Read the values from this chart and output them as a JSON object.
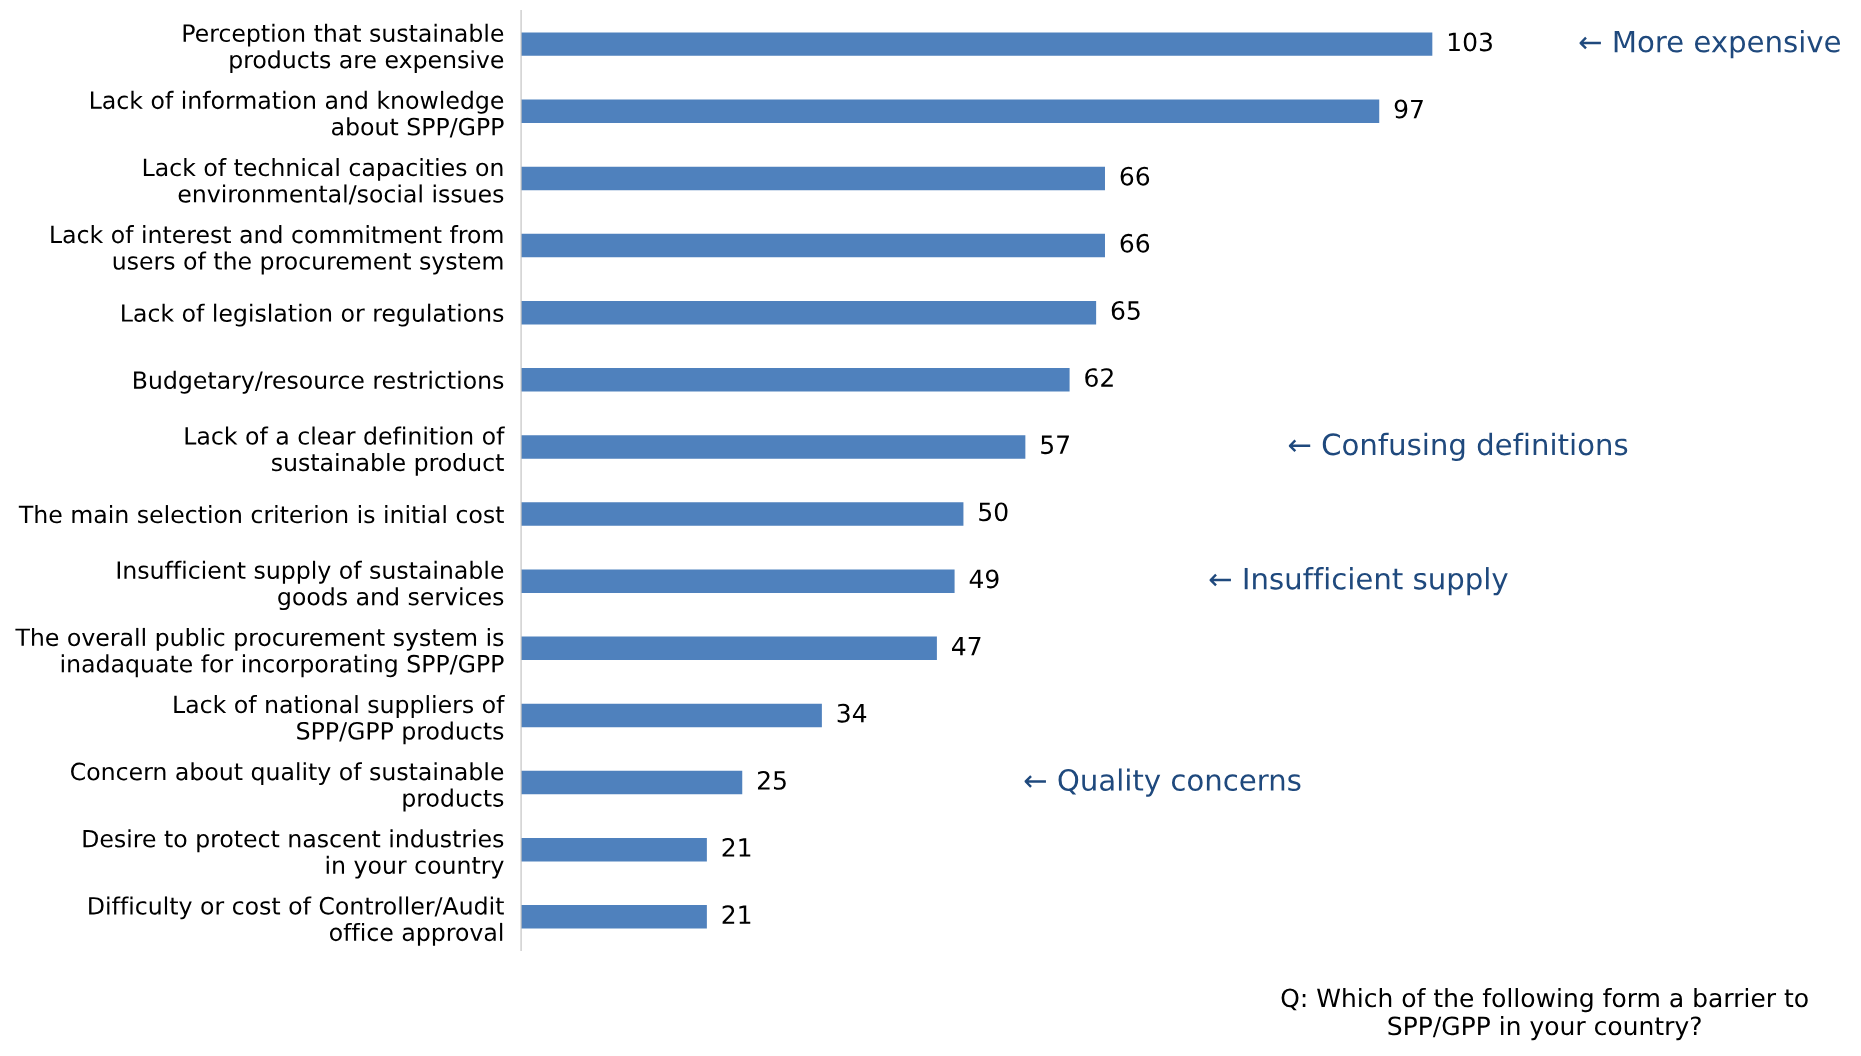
{
  "chart_data": {
    "type": "bar",
    "orientation": "horizontal",
    "categories": [
      "Perception that sustainable\nproducts are expensive",
      "Lack of information and knowledge\nabout SPP/GPP",
      "Lack of technical capacities on\nenvironmental/social issues",
      "Lack of interest and commitment from\nusers of the procurement system",
      "Lack of legislation or regulations",
      "Budgetary/resource restrictions",
      "Lack of a clear definition of\nsustainable product",
      "The main selection criterion is initial cost",
      "Insufficient supply of sustainable\ngoods and services",
      "The overall public procurement system is\ninadaquate for incorporating SPP/GPP",
      "Lack of national suppliers of\nSPP/GPP products",
      "Concern about quality of sustainable\nproducts",
      "Desire to protect nascent industries\nin your country",
      "Difficulty or cost of Controller/Audit\noffice approval"
    ],
    "values": [
      103,
      97,
      66,
      66,
      65,
      62,
      57,
      50,
      49,
      47,
      34,
      25,
      21,
      21
    ],
    "color": "#4f81bd",
    "data_labels": true,
    "grid": false,
    "legend": false,
    "annotations": [
      "← More expensive",
      "← Confusing definitions",
      "← Insufficient supply",
      "← Quality concerns",
      "Q: Which of the following form a barrier to\nSPP/GPP in your country?"
    ]
  }
}
